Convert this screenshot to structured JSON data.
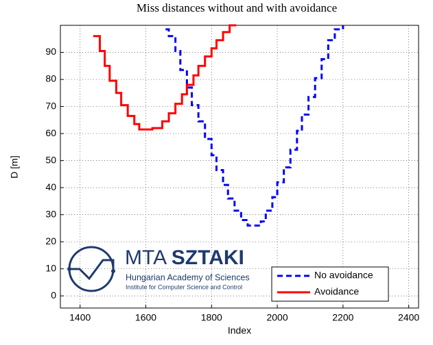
{
  "chart_data": {
    "type": "line",
    "step": "post",
    "title": "Miss distances without and with avoidance",
    "x_label": "Index",
    "y_label": "D [m]",
    "xlim": [
      1340,
      2430
    ],
    "xticks": [
      1400,
      1600,
      1800,
      2000,
      2200,
      2400
    ],
    "ylim": [
      -4.5,
      100
    ],
    "yticks": [
      0,
      10,
      20,
      30,
      40,
      50,
      60,
      70,
      80,
      90
    ],
    "grid": true,
    "legend": "lower right",
    "series": [
      {
        "name": "No avoidance",
        "color": "#0000ff",
        "linestyle": "dashed",
        "x": [
          1660,
          1670,
          1690,
          1705,
          1725,
          1740,
          1760,
          1780,
          1800,
          1815,
          1835,
          1850,
          1870,
          1890,
          1910,
          1950,
          1965,
          1985,
          2000,
          2020,
          2040,
          2060,
          2075,
          2095,
          2115,
          2135,
          2155,
          2175,
          2200
        ],
        "values": [
          98.5,
          96,
          90.5,
          83.5,
          77,
          70.5,
          64.5,
          58,
          52,
          46.5,
          41,
          36,
          31.5,
          28,
          26,
          27.5,
          31.5,
          36.5,
          42,
          47.5,
          54,
          61,
          67,
          73.5,
          80.5,
          87.5,
          94.5,
          98.5,
          100
        ]
      },
      {
        "name": "Avoidance",
        "color": "#ff0000",
        "linestyle": "solid",
        "x": [
          1440,
          1460,
          1475,
          1490,
          1510,
          1525,
          1545,
          1565,
          1580,
          1620,
          1650,
          1670,
          1690,
          1710,
          1725,
          1745,
          1760,
          1780,
          1800,
          1815,
          1835,
          1855,
          1875
        ],
        "values": [
          96,
          90.5,
          85,
          79.5,
          75,
          70.5,
          66.5,
          63.5,
          61.5,
          62,
          64.5,
          67.5,
          71,
          74.5,
          78,
          81.5,
          85,
          88.5,
          91.5,
          94.5,
          97.5,
          100,
          100
        ]
      }
    ]
  },
  "logo": {
    "name": "MTA",
    "name_bold": "SZTAKI",
    "line1": "Hungarian Academy of Sciences",
    "line2": "Institute for Computer Science and Control"
  }
}
